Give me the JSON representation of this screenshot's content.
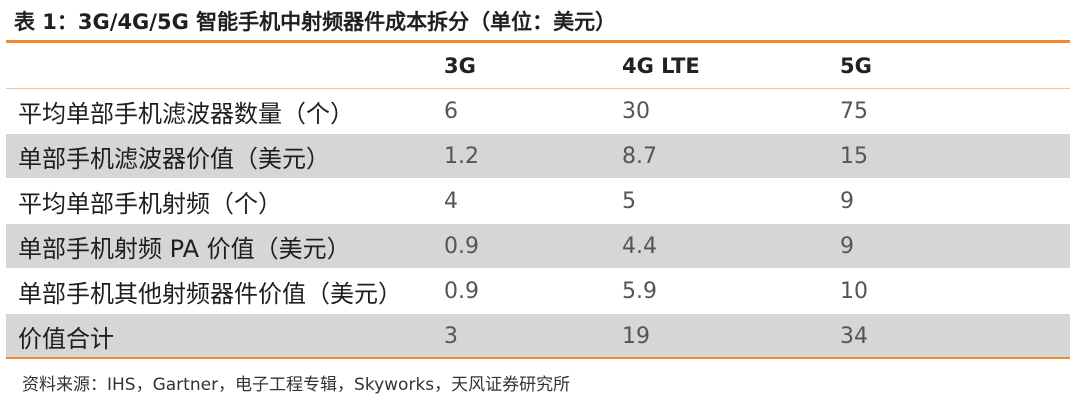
{
  "title": "表 1：3G/4G/5G 智能手机中射频器件成本拆分（单位：美元）",
  "table": {
    "headers": [
      "",
      "3G",
      "4G LTE",
      "5G"
    ],
    "rows": [
      {
        "label": "平均单部手机滤波器数量（个）",
        "values": [
          "6",
          "30",
          "75"
        ],
        "shaded": false
      },
      {
        "label": "单部手机滤波器价值（美元）",
        "values": [
          "1.2",
          "8.7",
          "15"
        ],
        "shaded": true
      },
      {
        "label": "平均单部手机射频（个）",
        "values": [
          "4",
          "5",
          "9"
        ],
        "shaded": false
      },
      {
        "label": "单部手机射频 PA 价值（美元）",
        "values": [
          "0.9",
          "4.4",
          "9"
        ],
        "shaded": true
      },
      {
        "label": "单部手机其他射频器件价值（美元）",
        "values": [
          "0.9",
          "5.9",
          "10"
        ],
        "shaded": false
      },
      {
        "label": "价值合计",
        "values": [
          "3",
          "19",
          "34"
        ],
        "shaded": true
      }
    ]
  },
  "source": "资料来源：IHS，Gartner，电子工程专辑，Skyworks，天风证券研究所",
  "colors": {
    "accent_rule": "#f08a2c",
    "row_shade": "#d6d6d6"
  }
}
